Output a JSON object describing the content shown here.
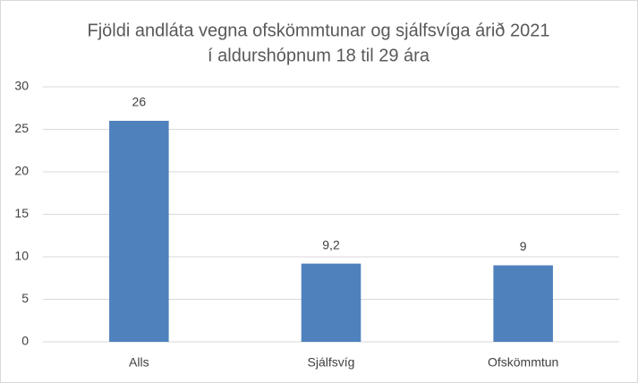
{
  "chart_data": {
    "type": "bar",
    "title": [
      "Fjöldi andláta vegna ofskömmtunar og sjálfsvíga árið 2021",
      "í aldurshópnum 18 til 29 ára"
    ],
    "categories": [
      "Alls",
      "Sjálfsvíg",
      "Ofskömmtun"
    ],
    "values": [
      26,
      9.2,
      9
    ],
    "value_labels": [
      "26",
      "9,2",
      "9"
    ],
    "color": "#4f81bd",
    "ylim": [
      0,
      30
    ],
    "yticks": [
      0,
      5,
      10,
      15,
      20,
      25,
      30
    ],
    "grid": true
  }
}
